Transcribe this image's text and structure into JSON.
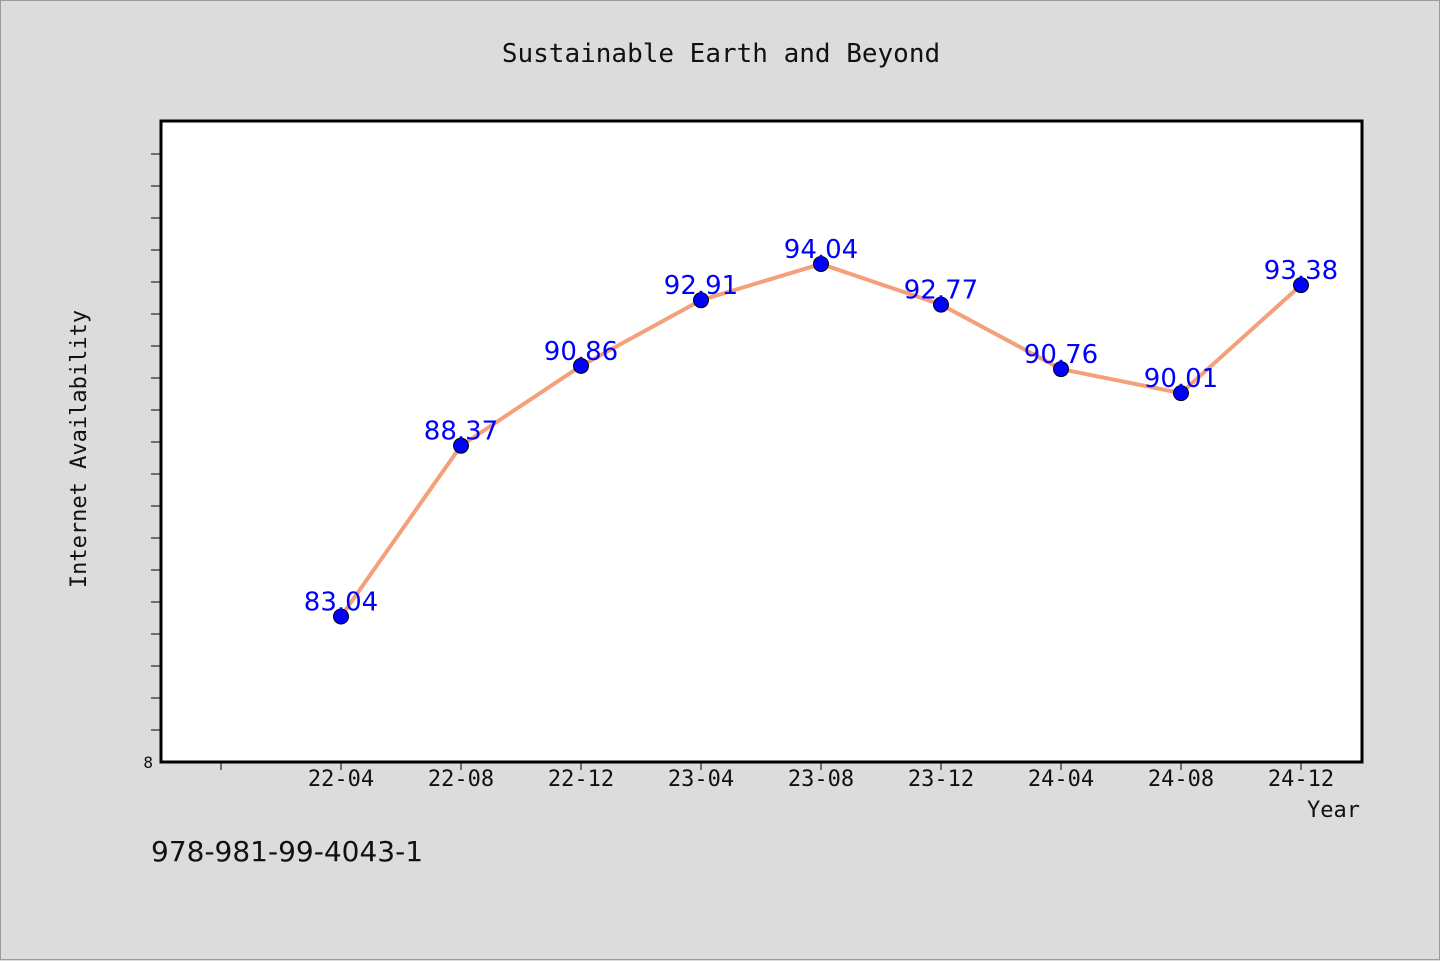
{
  "chart_data": {
    "type": "line",
    "title": "Sustainable Earth and Beyond",
    "xlabel": "Year",
    "ylabel": "Internet Availability",
    "categories": [
      "22-04",
      "22-08",
      "22-12",
      "23-04",
      "23-08",
      "23-12",
      "24-04",
      "24-08",
      "24-12"
    ],
    "series": [
      {
        "values": [
          83.04,
          88.37,
          90.86,
          92.91,
          94.04,
          92.77,
          90.76,
          90.01,
          93.38
        ],
        "data_labels": [
          "83.04",
          "88.37",
          "90.86",
          "92.91",
          "94.04",
          "92.77",
          "90.76",
          "90.01",
          "93.38"
        ],
        "line_color": "#f4a07a",
        "marker_color": "#0000ff"
      }
    ],
    "y_tick_labels": [
      "8"
    ],
    "ylim": [
      78.5,
      98.5
    ],
    "grid": false,
    "legend": "none",
    "plot_background": "#ffffff",
    "figure_background": "#dcdcdc"
  },
  "footer": {
    "isbn": "978-981-99-4043-1"
  }
}
